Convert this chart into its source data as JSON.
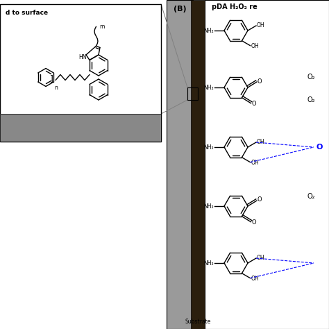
{
  "bg_color": "#ffffff",
  "substrate_color": "#888888",
  "dark_bar_color": "#2b1f0e",
  "light_bar_color": "#9a9a9a",
  "title_text": "pDA H₂O₂ re",
  "label_B": "(B)",
  "substrate_label": "Substrate",
  "inset_label": "d to surface",
  "o2_label": "O₂",
  "oh_blue_label": "O",
  "nh2_label": "NH₂",
  "oh_label": "OH",
  "o_label": "O",
  "m_label": "m",
  "n_label": "n",
  "hn_label": "HN",
  "fig_w": 4.74,
  "fig_h": 4.74,
  "dpi": 100
}
